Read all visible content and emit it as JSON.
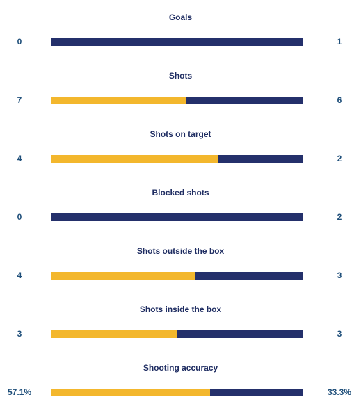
{
  "colors": {
    "home": "#f3b72d",
    "away": "#24306b",
    "label_text": "#1f2d62",
    "value_text": "#1f4f7a",
    "background": "#ffffff"
  },
  "stats": [
    {
      "label": "Goals",
      "home_value": "0",
      "away_value": "1",
      "home_share": 0
    },
    {
      "label": "Shots",
      "home_value": "7",
      "away_value": "6",
      "home_share": 0.5385
    },
    {
      "label": "Shots on target",
      "home_value": "4",
      "away_value": "2",
      "home_share": 0.6667
    },
    {
      "label": "Blocked shots",
      "home_value": "0",
      "away_value": "2",
      "home_share": 0
    },
    {
      "label": "Shots outside the box",
      "home_value": "4",
      "away_value": "3",
      "home_share": 0.5714
    },
    {
      "label": "Shots inside the box",
      "home_value": "3",
      "away_value": "3",
      "home_share": 0.5
    },
    {
      "label": "Shooting accuracy",
      "home_value": "57.1%",
      "away_value": "33.3%",
      "home_share": 0.6316
    }
  ]
}
